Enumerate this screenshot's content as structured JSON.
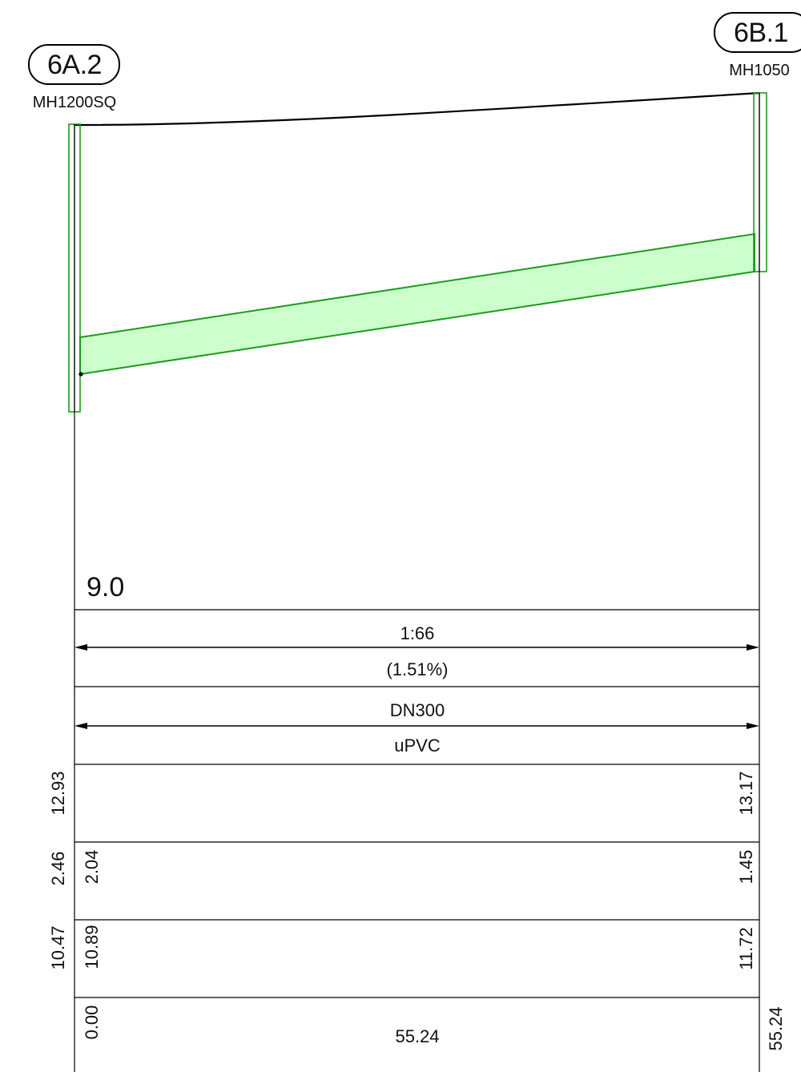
{
  "nodes": {
    "start": {
      "id": "6A.2",
      "type": "MH1200SQ"
    },
    "end": {
      "id": "6B.1",
      "type": "MH1050"
    }
  },
  "profile": {
    "pipe_fill_color": "#ccffcc",
    "pipe_stroke_color": "#1a9c1a",
    "ground_line_color": "#000000"
  },
  "datum": "9.0",
  "segment": {
    "grade": "1:66",
    "grade_percent": "(1.51%)",
    "diameter": "DN300",
    "material": "uPVC"
  },
  "rows": {
    "surface_level": {
      "start": "12.93",
      "end": "13.17"
    },
    "depth": {
      "start_outer": "2.46",
      "start_inner": "2.04",
      "end": "1.45"
    },
    "invert_level": {
      "start_outer": "10.47",
      "start_inner": "10.89",
      "end": "11.72"
    },
    "chainage": {
      "start": "0.00",
      "length": "55.24",
      "end": "55.24"
    }
  }
}
